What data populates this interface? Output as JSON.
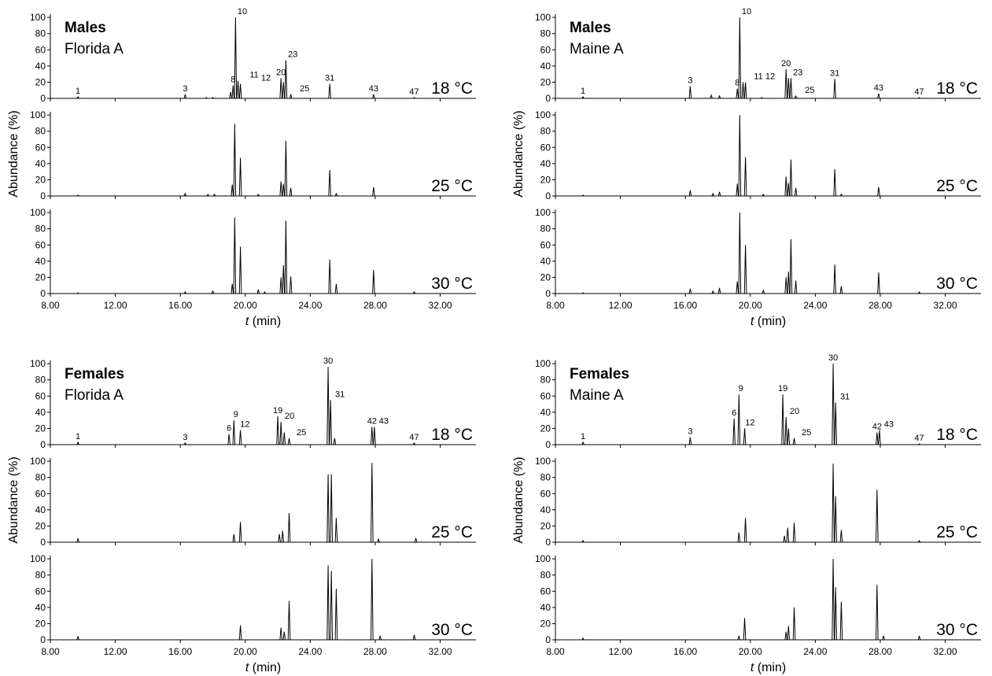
{
  "chart_data": [
    {
      "type": "line",
      "title": "Males",
      "subtitle": "Florida A",
      "ylabel": "Abundance (%)",
      "xlabel_symbol": "t",
      "xlabel_unit": "(min)",
      "xlim": [
        8,
        34.2
      ],
      "ylim": [
        0,
        104
      ],
      "xticks": [
        {
          "value": 8,
          "label": "8.00"
        },
        {
          "value": 12,
          "label": "12.00"
        },
        {
          "value": 16,
          "label": "16.00"
        },
        {
          "value": 20,
          "label": "20.00"
        },
        {
          "value": 24,
          "label": "24.00"
        },
        {
          "value": 28,
          "label": "28.00"
        },
        {
          "value": 32,
          "label": "32.00"
        }
      ],
      "yticks": [
        0,
        20,
        40,
        60,
        80,
        100
      ],
      "series": [
        {
          "name": "18 °C",
          "color": "#000000",
          "x": [
            9.7,
            16.3,
            17.6,
            18.0,
            19.1,
            19.25,
            19.4,
            19.55,
            19.7,
            22.2,
            22.35,
            22.5,
            22.8,
            25.2,
            27.9,
            30.4
          ],
          "values": [
            2,
            5,
            1,
            1,
            8,
            16,
            100,
            22,
            18,
            25,
            20,
            47,
            5,
            18,
            5,
            1
          ],
          "peak_labels": [
            "1",
            "3",
            null,
            null,
            null,
            "8",
            "10",
            "11",
            "12",
            "20",
            null,
            "23",
            "25",
            "31",
            "43",
            "47"
          ]
        },
        {
          "name": "25 °C",
          "color": "#000000",
          "x": [
            9.7,
            16.3,
            17.7,
            18.1,
            19.2,
            19.35,
            19.7,
            20.8,
            22.2,
            22.35,
            22.5,
            22.8,
            25.2,
            25.6,
            27.9
          ],
          "values": [
            1,
            3,
            2,
            2,
            14,
            89,
            47,
            2,
            18,
            15,
            68,
            10,
            32,
            3,
            11
          ]
        },
        {
          "name": "30 °C",
          "color": "#000000",
          "x": [
            9.7,
            16.3,
            18.0,
            19.2,
            19.35,
            19.7,
            20.8,
            21.2,
            22.2,
            22.35,
            22.5,
            22.8,
            25.2,
            25.6,
            27.9,
            30.4
          ],
          "values": [
            1,
            2,
            3,
            12,
            94,
            58,
            5,
            2,
            20,
            35,
            90,
            21,
            42,
            12,
            29,
            2
          ]
        }
      ]
    },
    {
      "type": "line",
      "title": "Males",
      "subtitle": "Maine A",
      "ylabel": "Abundance (%)",
      "xlabel_symbol": "t",
      "xlabel_unit": "(min)",
      "xlim": [
        8,
        34.2
      ],
      "ylim": [
        0,
        104
      ],
      "xticks": [
        {
          "value": 8,
          "label": "8.00"
        },
        {
          "value": 12,
          "label": "12.00"
        },
        {
          "value": 16,
          "label": "16.00"
        },
        {
          "value": 20,
          "label": "20.00"
        },
        {
          "value": 24,
          "label": "24.00"
        },
        {
          "value": 28,
          "label": "28.00"
        },
        {
          "value": 32,
          "label": "32.00"
        }
      ],
      "yticks": [
        0,
        20,
        40,
        60,
        80,
        100
      ],
      "series": [
        {
          "name": "18 °C",
          "color": "#000000",
          "x": [
            9.7,
            16.3,
            17.6,
            18.1,
            19.2,
            19.35,
            19.55,
            19.7,
            20.7,
            22.2,
            22.35,
            22.5,
            22.8,
            25.2,
            27.9,
            30.4
          ],
          "values": [
            2,
            15,
            4,
            3,
            12,
            100,
            20,
            20,
            1,
            36,
            25,
            25,
            3,
            24,
            6,
            1
          ],
          "peak_labels": [
            "1",
            "3",
            null,
            null,
            "8",
            "10",
            "11",
            "12",
            null,
            "20",
            null,
            "23",
            "25",
            "31",
            "43",
            "47"
          ]
        },
        {
          "name": "25 °C",
          "color": "#000000",
          "x": [
            9.7,
            16.3,
            17.7,
            18.1,
            19.2,
            19.35,
            19.7,
            20.8,
            22.2,
            22.35,
            22.5,
            22.8,
            25.2,
            25.6,
            27.9
          ],
          "values": [
            1,
            7,
            3,
            5,
            15,
            100,
            48,
            2,
            24,
            16,
            45,
            10,
            33,
            2,
            11
          ]
        },
        {
          "name": "30 °C",
          "color": "#000000",
          "x": [
            9.7,
            16.3,
            17.7,
            18.1,
            19.2,
            19.35,
            19.7,
            20.8,
            22.2,
            22.35,
            22.5,
            22.8,
            25.2,
            25.6,
            27.9,
            30.4
          ],
          "values": [
            1,
            6,
            3,
            7,
            15,
            100,
            60,
            4,
            20,
            27,
            67,
            16,
            36,
            9,
            26,
            2
          ]
        }
      ]
    },
    {
      "type": "line",
      "title": "Females",
      "subtitle": "Florida A",
      "ylabel": "Abundance (%)",
      "xlabel_symbol": "t",
      "xlabel_unit": "(min)",
      "xlim": [
        8,
        34.2
      ],
      "ylim": [
        0,
        104
      ],
      "xticks": [
        {
          "value": 8,
          "label": "8.00"
        },
        {
          "value": 12,
          "label": "12.00"
        },
        {
          "value": 16,
          "label": "16.00"
        },
        {
          "value": 20,
          "label": "20.00"
        },
        {
          "value": 24,
          "label": "24.00"
        },
        {
          "value": 28,
          "label": "28.00"
        },
        {
          "value": 32,
          "label": "32.00"
        }
      ],
      "yticks": [
        0,
        20,
        40,
        60,
        80,
        100
      ],
      "series": [
        {
          "name": "18 °C",
          "color": "#000000",
          "x": [
            9.7,
            16.3,
            19.0,
            19.3,
            19.7,
            22.0,
            22.2,
            22.4,
            22.7,
            25.1,
            25.25,
            25.5,
            27.8,
            27.95,
            30.4
          ],
          "values": [
            3,
            2,
            13,
            30,
            18,
            35,
            28,
            15,
            8,
            96,
            55,
            8,
            22,
            22,
            2
          ],
          "peak_labels": [
            "1",
            "3",
            "6",
            "9",
            "12",
            "19",
            "20",
            null,
            "25",
            "30",
            "31",
            null,
            "42",
            "43",
            "47"
          ]
        },
        {
          "name": "25 °C",
          "color": "#000000",
          "x": [
            9.7,
            19.3,
            19.7,
            22.1,
            22.3,
            22.7,
            25.1,
            25.3,
            25.6,
            27.8,
            28.2,
            30.5
          ],
          "values": [
            5,
            10,
            25,
            10,
            14,
            36,
            84,
            84,
            30,
            98,
            4,
            5
          ]
        },
        {
          "name": "30 °C",
          "color": "#000000",
          "x": [
            9.7,
            19.7,
            22.2,
            22.4,
            22.7,
            25.1,
            25.3,
            25.6,
            27.8,
            28.3,
            30.4
          ],
          "values": [
            4,
            18,
            15,
            10,
            48,
            92,
            85,
            63,
            100,
            5,
            6
          ]
        }
      ]
    },
    {
      "type": "line",
      "title": "Females",
      "subtitle": "Maine A",
      "ylabel": "Abundance (%)",
      "xlabel_symbol": "t",
      "xlabel_unit": "(min)",
      "xlim": [
        8,
        34.2
      ],
      "ylim": [
        0,
        104
      ],
      "xticks": [
        {
          "value": 8,
          "label": "8.00"
        },
        {
          "value": 12,
          "label": "12.00"
        },
        {
          "value": 16,
          "label": "16.00"
        },
        {
          "value": 20,
          "label": "20.00"
        },
        {
          "value": 24,
          "label": "24.00"
        },
        {
          "value": 28,
          "label": "28.00"
        },
        {
          "value": 32,
          "label": "32.00"
        }
      ],
      "yticks": [
        0,
        20,
        40,
        60,
        80,
        100
      ],
      "series": [
        {
          "name": "18 °C",
          "color": "#000000",
          "x": [
            9.7,
            16.3,
            19.0,
            19.3,
            19.65,
            22.0,
            22.2,
            22.35,
            22.7,
            25.1,
            25.25,
            27.8,
            27.95,
            30.4
          ],
          "values": [
            3,
            9,
            32,
            62,
            20,
            62,
            34,
            20,
            8,
            100,
            52,
            15,
            18,
            1
          ],
          "peak_labels": [
            "1",
            "3",
            "6",
            "9",
            "12",
            "19",
            "20",
            null,
            "25",
            "30",
            "31",
            "42",
            "43",
            "47"
          ]
        },
        {
          "name": "25 °C",
          "color": "#000000",
          "x": [
            9.7,
            19.3,
            19.7,
            22.1,
            22.3,
            22.7,
            25.1,
            25.25,
            25.6,
            27.8,
            30.4
          ],
          "values": [
            2,
            12,
            30,
            8,
            18,
            24,
            97,
            57,
            15,
            65,
            2
          ]
        },
        {
          "name": "30 °C",
          "color": "#000000",
          "x": [
            9.7,
            19.3,
            19.65,
            22.2,
            22.35,
            22.7,
            25.1,
            25.25,
            25.6,
            27.8,
            28.2,
            30.4
          ],
          "values": [
            2,
            5,
            27,
            10,
            17,
            40,
            100,
            65,
            47,
            68,
            5,
            5
          ]
        }
      ]
    }
  ]
}
